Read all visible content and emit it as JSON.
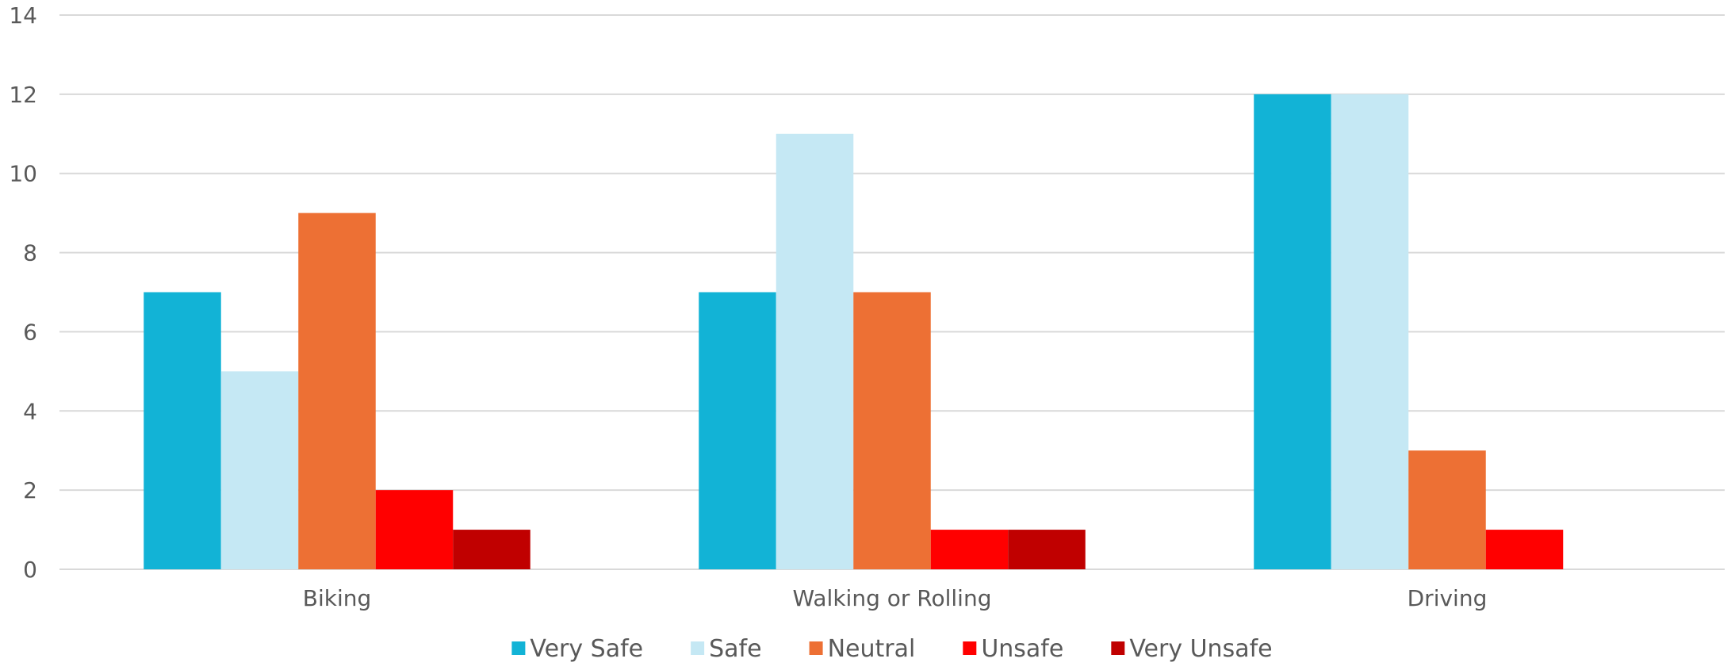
{
  "chart_data": {
    "type": "bar",
    "title": "",
    "xlabel": "",
    "ylabel": "",
    "categories": [
      "Biking",
      "Walking or Rolling",
      "Driving"
    ],
    "series": [
      {
        "name": "Very Safe",
        "color": "#12B3D6",
        "values": [
          7,
          7,
          12
        ]
      },
      {
        "name": "Safe",
        "color": "#C5E8F4",
        "values": [
          5,
          11,
          12
        ]
      },
      {
        "name": "Neutral",
        "color": "#ED7034",
        "values": [
          9,
          7,
          3
        ]
      },
      {
        "name": "Unsafe",
        "color": "#FF0000",
        "values": [
          2,
          1,
          1
        ]
      },
      {
        "name": "Very Unsafe",
        "color": "#C00000",
        "values": [
          1,
          1,
          0
        ]
      }
    ],
    "ylim": [
      0,
      14
    ],
    "yticks": [
      0,
      2,
      4,
      6,
      8,
      10,
      12,
      14
    ],
    "grid": true,
    "legend_position": "bottom"
  }
}
